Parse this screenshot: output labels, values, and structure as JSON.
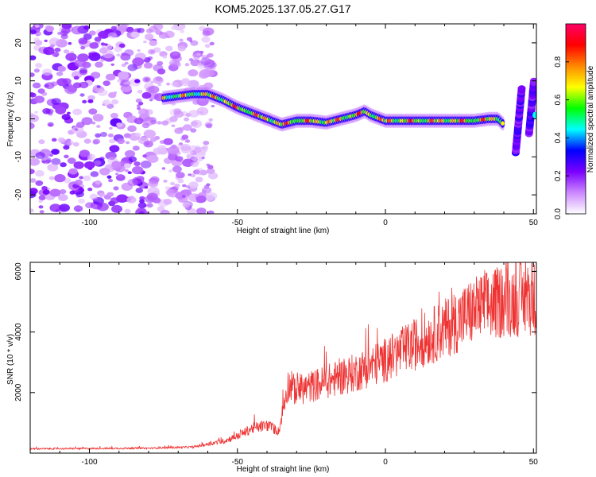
{
  "title": "KOM5.2025.137.05.27.G17",
  "chart_data": [
    {
      "type": "heatmap",
      "xlabel": "Height of straight line (km)",
      "ylabel": "Frequency (Hz)",
      "xlim": [
        -120,
        51
      ],
      "ylim": [
        -25,
        25
      ],
      "xticks": [
        -100,
        -50,
        0,
        50
      ],
      "yticks": [
        -20,
        -10,
        0,
        10,
        20
      ],
      "colorbar": {
        "label": "Normalized spectral amplitude",
        "range": [
          0,
          1
        ],
        "ticks": [
          "0.0",
          "0.2",
          "0.4",
          "0.6",
          "0.8"
        ],
        "colors": [
          "#ffffff",
          "#cc88ff",
          "#7a00ff",
          "#0000ff",
          "#00ffff",
          "#00ff00",
          "#ffff00",
          "#ff8800",
          "#ff0000",
          "#ff0066"
        ]
      },
      "ridge": {
        "x": [
          -75,
          -70,
          -65,
          -60,
          -55,
          -50,
          -45,
          -40,
          -35,
          -30,
          -25,
          -20,
          -15,
          -10,
          -7,
          -5,
          0,
          5,
          10,
          15,
          20,
          25,
          30,
          35,
          38,
          40
        ],
        "y": [
          5.5,
          6,
          6.5,
          6.5,
          5,
          3,
          1.5,
          0,
          -1.5,
          -0.5,
          -0.5,
          -1,
          0,
          1,
          2,
          1,
          -0.5,
          -0.5,
          -0.5,
          -0.5,
          -0.5,
          -0.5,
          -0.5,
          0,
          0,
          -1.5
        ]
      }
    },
    {
      "type": "line",
      "xlabel": "Height of straight line (km)",
      "ylabel": "SNR (10 * v/v)",
      "xlim": [
        -120,
        51
      ],
      "ylim": [
        0,
        6300
      ],
      "xticks": [
        -100,
        -50,
        0,
        50
      ],
      "yticks": [
        2000,
        4000,
        6000
      ],
      "color": "#ee3333",
      "envelope": {
        "x": [
          -120,
          -100,
          -80,
          -65,
          -55,
          -50,
          -45,
          -40,
          -36,
          -33,
          -30,
          -20,
          -10,
          0,
          10,
          20,
          30,
          40,
          51
        ],
        "y": [
          140,
          150,
          160,
          200,
          380,
          550,
          800,
          900,
          700,
          2200,
          2000,
          2300,
          2600,
          3000,
          3500,
          4000,
          4600,
          4900,
          5000
        ]
      }
    }
  ]
}
